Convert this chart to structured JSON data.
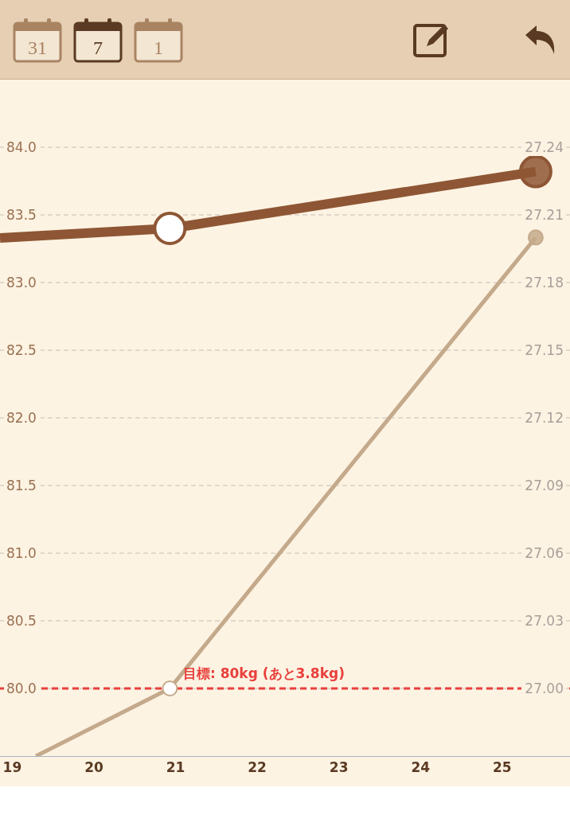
{
  "chart_data": {
    "type": "line",
    "x": [
      18.85,
      20.93,
      25.41
    ],
    "xlim": [
      18.85,
      25.83
    ],
    "xticks": [
      19,
      20,
      21,
      22,
      23,
      24,
      25
    ],
    "series": [
      {
        "color": "#8e5634",
        "values": [
          83.33,
          83.4,
          83.82
        ]
      },
      {
        "color": "#c4a98b",
        "axis": "y2",
        "x": [
          19.29,
          20.93,
          25.41
        ],
        "values": [
          26.97,
          27.0,
          27.2
        ]
      }
    ],
    "ylim": [
      79.5,
      84.5
    ],
    "yticks": [
      {
        "value": 80,
        "label": "80.0"
      },
      {
        "value": 80.5,
        "label": "80.5"
      },
      {
        "value": 81,
        "label": "81.0"
      },
      {
        "value": 81.5,
        "label": "81.5"
      },
      {
        "value": 82,
        "label": "82.0"
      },
      {
        "value": 82.5,
        "label": "82.5"
      },
      {
        "value": 83,
        "label": "83.0"
      },
      {
        "value": 83.5,
        "label": "83.5"
      },
      {
        "value": 84,
        "label": "84.0"
      }
    ],
    "y2lim": [
      26.97,
      27.27
    ],
    "y2ticks": [
      {
        "value": 27,
        "label": "27.00"
      },
      {
        "value": 27.03,
        "label": "27.03"
      },
      {
        "value": 27.06,
        "label": "27.06"
      },
      {
        "value": 27.09,
        "label": "27.09"
      },
      {
        "value": 27.12,
        "label": "27.12"
      },
      {
        "value": 27.15,
        "label": "27.15"
      },
      {
        "value": 27.18,
        "label": "27.18"
      },
      {
        "value": 27.21,
        "label": "27.21"
      },
      {
        "value": 27.24,
        "label": "27.24"
      }
    ],
    "grid": "y",
    "marker": "circle",
    "line_style": "solid",
    "legend": false,
    "ref_lines": [
      {
        "axis": "y",
        "value": 80,
        "label": "目標: 80kg (あと3.8kg)",
        "color": "#e8403c",
        "line_style": "dashed"
      }
    ],
    "annotations": [
      "31",
      "7",
      "1"
    ]
  }
}
